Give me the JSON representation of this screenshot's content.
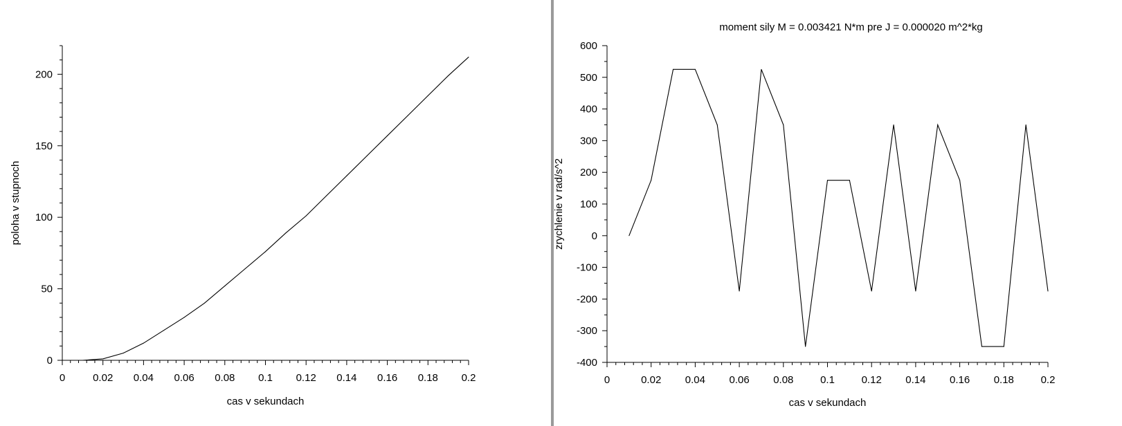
{
  "chart_data": [
    {
      "type": "line",
      "title": "",
      "xlabel": "cas v sekundach",
      "ylabel": "poloha v stupnoch",
      "xlim": [
        0,
        0.2
      ],
      "ylim": [
        0,
        220
      ],
      "xticks": [
        "0",
        "0.02",
        "0.04",
        "0.06",
        "0.08",
        "0.1",
        "0.12",
        "0.14",
        "0.16",
        "0.18",
        "0.2"
      ],
      "yticks": [
        "0",
        "50",
        "100",
        "150",
        "200"
      ],
      "grid": false,
      "series": [
        {
          "x": [
            0.01,
            0.02,
            0.03,
            0.04,
            0.05,
            0.06,
            0.07,
            0.08,
            0.09,
            0.1,
            0.11,
            0.12,
            0.13,
            0.14,
            0.15,
            0.16,
            0.17,
            0.18,
            0.19,
            0.2
          ],
          "y": [
            0,
            1,
            5,
            12,
            21,
            30,
            40,
            52,
            64,
            76,
            89,
            101,
            115,
            129,
            143,
            157,
            171,
            185,
            199,
            212
          ]
        }
      ]
    },
    {
      "type": "line",
      "title": "moment sily M = 0.003421 N*m pre J = 0.000020 m^2*kg",
      "xlabel": "cas v sekundach",
      "ylabel": "zrychlenie v rad/s^2",
      "xlim": [
        0,
        0.2
      ],
      "ylim": [
        -400,
        600
      ],
      "xticks": [
        "0",
        "0.02",
        "0.04",
        "0.06",
        "0.08",
        "0.1",
        "0.12",
        "0.14",
        "0.16",
        "0.18",
        "0.2"
      ],
      "yticks": [
        "-400",
        "-300",
        "-200",
        "-100",
        "0",
        "100",
        "200",
        "300",
        "400",
        "500",
        "600"
      ],
      "grid": false,
      "series": [
        {
          "x": [
            0.01,
            0.02,
            0.03,
            0.04,
            0.05,
            0.06,
            0.07,
            0.08,
            0.09,
            0.1,
            0.11,
            0.12,
            0.13,
            0.14,
            0.15,
            0.16,
            0.17,
            0.18,
            0.19,
            0.2
          ],
          "y": [
            0,
            175,
            525,
            525,
            350,
            -175,
            525,
            350,
            -350,
            175,
            175,
            -175,
            350,
            -175,
            350,
            175,
            -350,
            -350,
            350,
            -175
          ]
        }
      ]
    }
  ]
}
